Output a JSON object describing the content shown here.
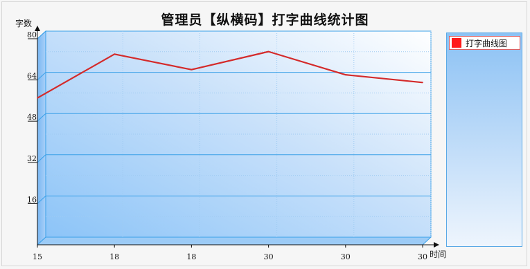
{
  "chart_data": {
    "type": "line",
    "title": "管理员【纵横码】打字曲线统计图",
    "ylabel": "字数",
    "xlabel": "时间",
    "categories": [
      "15",
      "18",
      "18",
      "30",
      "30",
      "30"
    ],
    "series": [
      {
        "name": "打字曲线图",
        "values": [
          57,
          74,
          68,
          75,
          66,
          63
        ],
        "color": "#d42a2a"
      }
    ],
    "ylim": [
      0,
      80
    ],
    "yticks": [
      "16",
      "32",
      "48",
      "64",
      "80"
    ],
    "grid": true,
    "legend_position": "right"
  }
}
